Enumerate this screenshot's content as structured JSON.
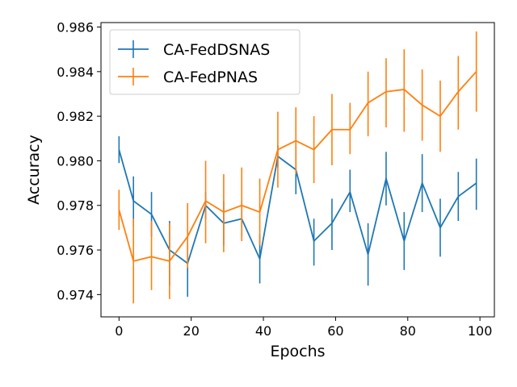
{
  "chart_data": {
    "type": "line",
    "title": "",
    "xlabel": "Epochs",
    "ylabel": "Accuracy",
    "xlim": [
      -5,
      104
    ],
    "ylim": [
      0.973,
      0.9862
    ],
    "xticks": [
      0,
      20,
      40,
      60,
      80,
      100
    ],
    "yticks": [
      0.974,
      0.976,
      0.978,
      0.98,
      0.982,
      0.984,
      0.986
    ],
    "ytick_labels": [
      "0.974",
      "0.976",
      "0.978",
      "0.980",
      "0.982",
      "0.984",
      "0.986"
    ],
    "grid": false,
    "legend_position": "top-left",
    "x": [
      0,
      4,
      9,
      14,
      19,
      24,
      29,
      34,
      39,
      44,
      49,
      54,
      59,
      64,
      69,
      74,
      79,
      84,
      89,
      94,
      99
    ],
    "series": [
      {
        "name": "CA-FedDSNAS",
        "color": "#1f77b4",
        "values": [
          0.9805,
          0.9782,
          0.9776,
          0.976,
          0.9754,
          0.978,
          0.9772,
          0.9774,
          0.9756,
          0.9802,
          0.9796,
          0.9764,
          0.9772,
          0.9786,
          0.9758,
          0.9792,
          0.9764,
          0.979,
          0.977,
          0.9784,
          0.979
        ],
        "err_low": [
          0.9799,
          0.9771,
          0.9766,
          0.9744,
          0.9739,
          0.9774,
          0.9762,
          0.9766,
          0.9745,
          0.9797,
          0.9785,
          0.9753,
          0.976,
          0.9777,
          0.9744,
          0.978,
          0.9751,
          0.9777,
          0.9757,
          0.9773,
          0.9778
        ],
        "err_high": [
          0.9811,
          0.9793,
          0.9786,
          0.9773,
          0.9765,
          0.9786,
          0.9782,
          0.9782,
          0.9767,
          0.9807,
          0.9806,
          0.9774,
          0.9783,
          0.9796,
          0.9772,
          0.9804,
          0.9777,
          0.9803,
          0.9783,
          0.9795,
          0.9801
        ]
      },
      {
        "name": "CA-FedPNAS",
        "color": "#ff7f0e",
        "values": [
          0.9778,
          0.9755,
          0.9757,
          0.9755,
          0.9766,
          0.9782,
          0.9777,
          0.978,
          0.9777,
          0.9805,
          0.9809,
          0.9805,
          0.9814,
          0.9814,
          0.9826,
          0.9831,
          0.9832,
          0.9825,
          0.982,
          0.9831,
          0.984
        ],
        "err_low": [
          0.9769,
          0.9736,
          0.9742,
          0.9738,
          0.9752,
          0.9763,
          0.9759,
          0.9764,
          0.9762,
          0.9788,
          0.9794,
          0.979,
          0.9798,
          0.9803,
          0.9811,
          0.9815,
          0.9813,
          0.9809,
          0.9804,
          0.9814,
          0.9822
        ],
        "err_high": [
          0.9787,
          0.9774,
          0.9773,
          0.9772,
          0.9781,
          0.98,
          0.9794,
          0.9797,
          0.9792,
          0.9822,
          0.9824,
          0.982,
          0.983,
          0.9826,
          0.984,
          0.9846,
          0.985,
          0.9841,
          0.9836,
          0.9847,
          0.9858
        ]
      }
    ]
  }
}
